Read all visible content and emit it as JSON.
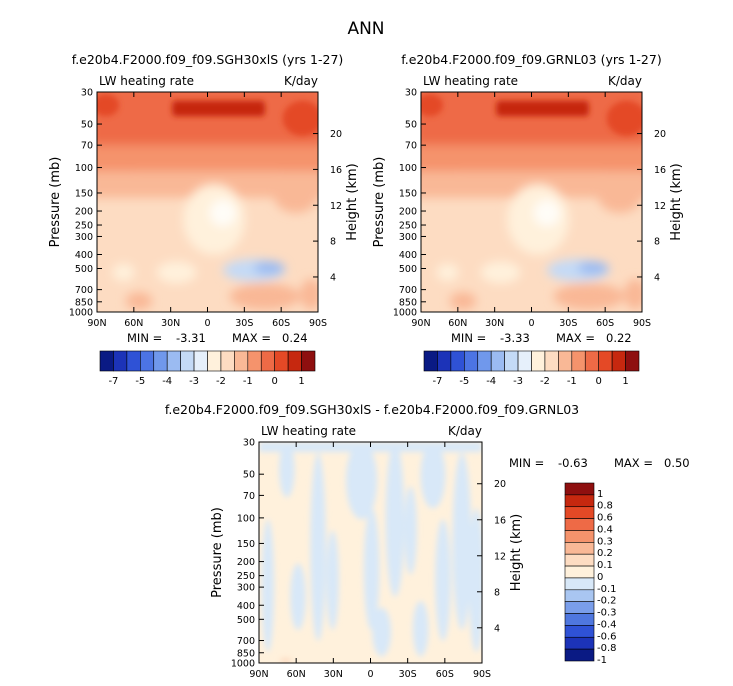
{
  "figure": {
    "title": "ANN"
  },
  "chart_data": [
    {
      "type": "heatmap",
      "title": "f.e20b4.F2000.f09_f09.SGH30xlS (yrs 1-27)",
      "left_label": "LW heating rate",
      "right_label": "K/day",
      "ylabel": "Pressure (mb)",
      "ylabel_right": "Height (km)",
      "x_ticks": [
        "90N",
        "60N",
        "30N",
        "0",
        "30S",
        "60S",
        "90S"
      ],
      "y_ticks": [
        "30",
        "50",
        "70",
        "100",
        "150",
        "200",
        "250",
        "300",
        "400",
        "500",
        "700",
        "850",
        "1000"
      ],
      "y_ticks_right": [
        "20",
        "16",
        "12",
        "8",
        "4"
      ],
      "stats": {
        "min_label": "MIN =",
        "min": "-3.31",
        "max_label": "MAX =",
        "max": "0.24"
      },
      "colorbar": {
        "orientation": "horizontal",
        "labels": [
          "-7",
          "-5",
          "-4",
          "-3",
          "-2",
          "-1",
          "0",
          "1"
        ],
        "colors": [
          "#0a1a84",
          "#1c33b8",
          "#2f52d6",
          "#4c74e4",
          "#7098ec",
          "#9bbbf2",
          "#c4daf6",
          "#e6f0fb",
          "#fff1dc",
          "#fddcc2",
          "#f9b896",
          "#f5936c",
          "#ee6a46",
          "#e44926",
          "#c6280f",
          "#8e0f0f"
        ]
      }
    },
    {
      "type": "heatmap",
      "title": "f.e20b4.F2000.f09_f09.GRNL03 (yrs 1-27)",
      "left_label": "LW heating rate",
      "right_label": "K/day",
      "ylabel": "Pressure (mb)",
      "ylabel_right": "Height (km)",
      "x_ticks": [
        "90N",
        "60N",
        "30N",
        "0",
        "30S",
        "60S",
        "90S"
      ],
      "y_ticks": [
        "30",
        "50",
        "70",
        "100",
        "150",
        "200",
        "250",
        "300",
        "400",
        "500",
        "700",
        "850",
        "1000"
      ],
      "y_ticks_right": [
        "20",
        "16",
        "12",
        "8",
        "4"
      ],
      "stats": {
        "min_label": "MIN =",
        "min": "-3.33",
        "max_label": "MAX =",
        "max": "0.22"
      },
      "colorbar": {
        "orientation": "horizontal",
        "labels": [
          "-7",
          "-5",
          "-4",
          "-3",
          "-2",
          "-1",
          "0",
          "1"
        ],
        "colors": [
          "#0a1a84",
          "#1c33b8",
          "#2f52d6",
          "#4c74e4",
          "#7098ec",
          "#9bbbf2",
          "#c4daf6",
          "#e6f0fb",
          "#fff1dc",
          "#fddcc2",
          "#f9b896",
          "#f5936c",
          "#ee6a46",
          "#e44926",
          "#c6280f",
          "#8e0f0f"
        ]
      }
    },
    {
      "type": "heatmap",
      "title": "f.e20b4.F2000.f09_f09.SGH30xlS - f.e20b4.F2000.f09_f09.GRNL03",
      "left_label": "LW heating rate",
      "right_label": "K/day",
      "ylabel": "Pressure (mb)",
      "ylabel_right": "Height (km)",
      "x_ticks": [
        "90N",
        "60N",
        "30N",
        "0",
        "30S",
        "60S",
        "90S"
      ],
      "y_ticks": [
        "30",
        "50",
        "70",
        "100",
        "150",
        "200",
        "250",
        "300",
        "400",
        "500",
        "700",
        "850",
        "1000"
      ],
      "y_ticks_right": [
        "20",
        "16",
        "12",
        "8",
        "4"
      ],
      "stats": {
        "min_label": "MIN =",
        "min": "-0.63",
        "max_label": "MAX =",
        "max": "0.50"
      },
      "colorbar": {
        "orientation": "vertical",
        "labels": [
          "1",
          "0.8",
          "0.6",
          "0.4",
          "0.3",
          "0.2",
          "0.1",
          "0",
          "-0.1",
          "-0.2",
          "-0.3",
          "-0.4",
          "-0.6",
          "-0.8",
          "-1"
        ],
        "colors": [
          "#8e0f0f",
          "#c6280f",
          "#e44926",
          "#ee6a46",
          "#f5936c",
          "#f9b896",
          "#fddcc2",
          "#fff1dc",
          "#d8e8f8",
          "#a9c6f1",
          "#7a9eea",
          "#4f77df",
          "#2f52d6",
          "#1c33b8",
          "#0a1a84"
        ]
      }
    }
  ]
}
